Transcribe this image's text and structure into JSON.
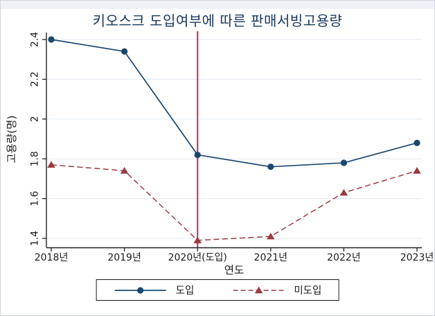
{
  "chart_data": {
    "type": "line",
    "title": "키오스크 도입여부에 따른 판매서빙고용량",
    "categories": [
      "2018년",
      "2019년",
      "2020년(도입)",
      "2021년",
      "2022년",
      "2023년"
    ],
    "series": [
      {
        "name": "도입",
        "slug": "adopted",
        "values": [
          2.4,
          2.34,
          1.82,
          1.76,
          1.78,
          1.88
        ],
        "color": "#1a476f",
        "line_style": "solid",
        "marker": "circle"
      },
      {
        "name": "미도입",
        "slug": "not-adopted",
        "values": [
          1.77,
          1.74,
          1.39,
          1.41,
          1.63,
          1.74
        ],
        "color": "#9b3a42",
        "line_style": "dashed",
        "marker": "triangle"
      }
    ],
    "xlabel": "연도",
    "ylabel": "고용량(명)",
    "yticks": [
      2.4,
      2.2,
      2.0,
      1.8,
      1.6,
      1.4
    ],
    "ytick_labels": [
      "2.4",
      "2.2",
      "2",
      "1.8",
      "1.6",
      "1.4"
    ],
    "ylim": [
      1.35,
      2.45
    ],
    "grid": true,
    "legend_position": "bottom-center",
    "reference_line": {
      "axis": "x",
      "at_index": 2,
      "color": "#c23b6b"
    }
  },
  "colors": {
    "title": "#17365d",
    "axis": "#202020",
    "grid": "#e3eaf1",
    "tick_label": "#1a1a1a",
    "background_strip": "#eef1f6",
    "figure_border": "#cfd5dc",
    "legend_border": "#1a1a1a"
  }
}
